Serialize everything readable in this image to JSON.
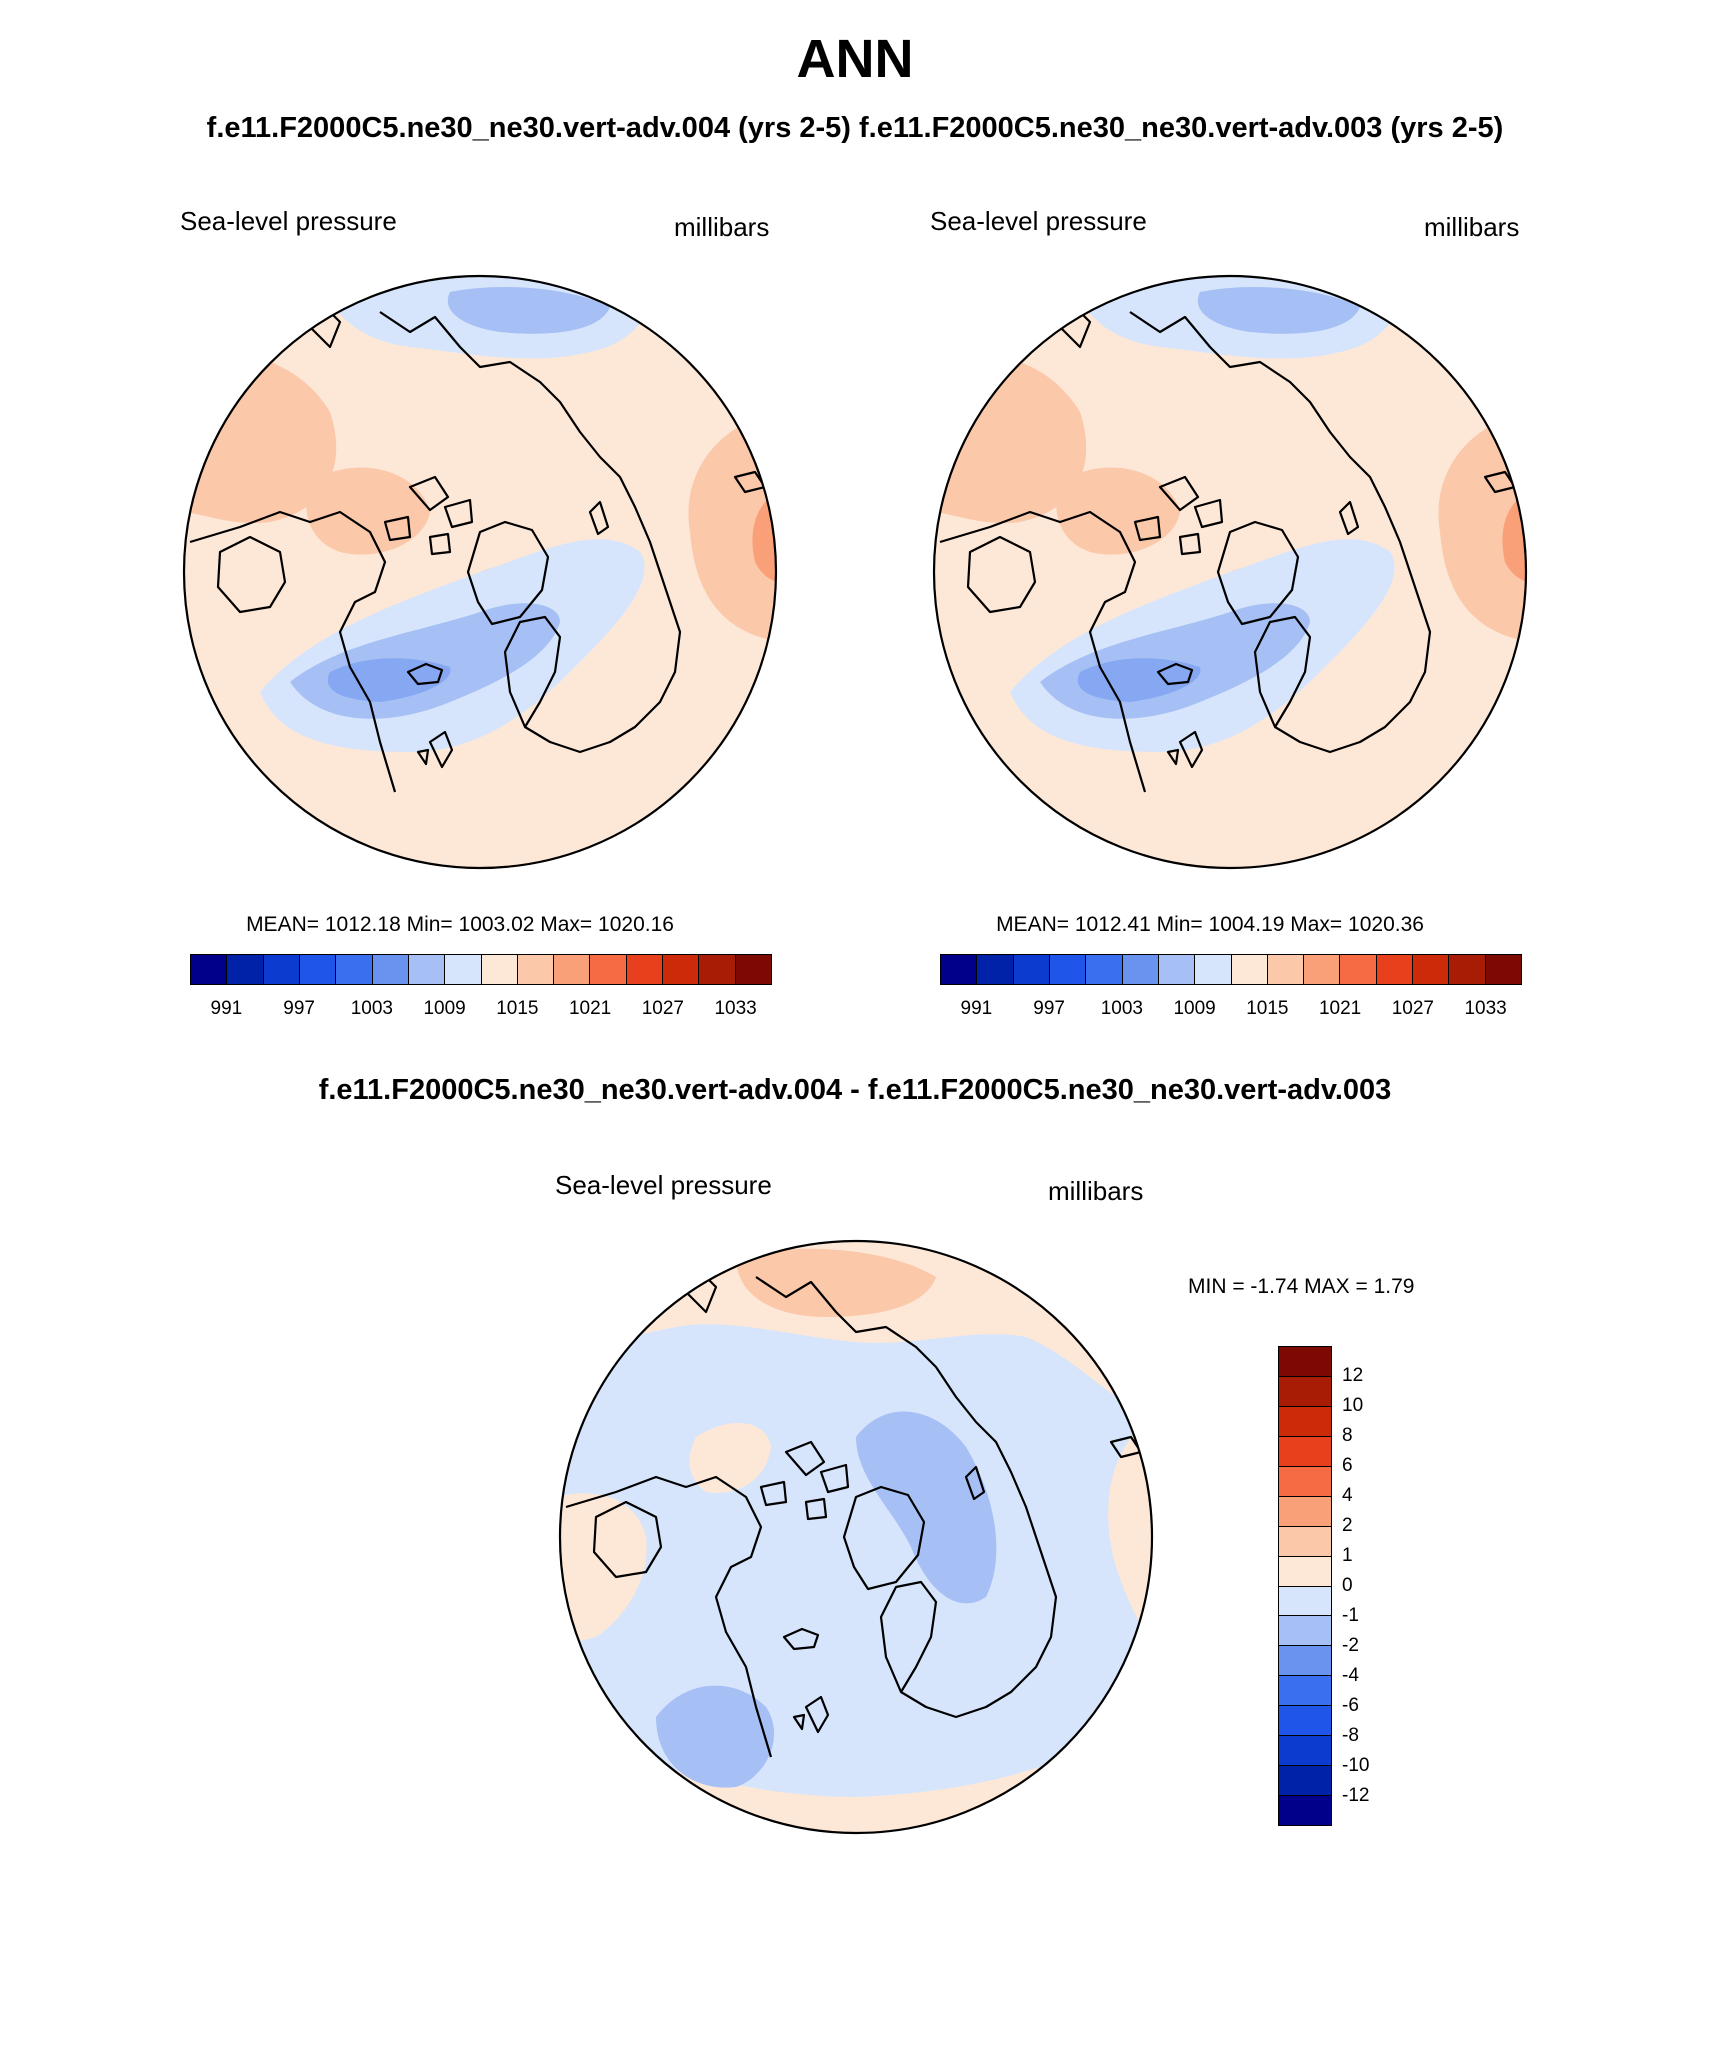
{
  "header": {
    "title": "ANN",
    "subtitle": "f.e11.F2000C5.ne30_ne30.vert-adv.004 (yrs 2-5) f.e11.F2000C5.ne30_ne30.vert-adv.003 (yrs 2-5)",
    "diff_title": "f.e11.F2000C5.ne30_ne30.vert-adv.004 - f.e11.F2000C5.ne30_ne30.vert-adv.003"
  },
  "panels": [
    {
      "variable": "Sea-level pressure",
      "units": "millibars",
      "stats": "MEAN= 1012.18  Min= 1003.02  Max= 1020.16",
      "cbar_ticks": [
        "991",
        "997",
        "1003",
        "1009",
        "1015",
        "1021",
        "1027",
        "1033"
      ]
    },
    {
      "variable": "Sea-level pressure",
      "units": "millibars",
      "stats": "MEAN= 1012.41  Min= 1004.19  Max= 1020.36",
      "cbar_ticks": [
        "991",
        "997",
        "1003",
        "1009",
        "1015",
        "1021",
        "1027",
        "1033"
      ]
    },
    {
      "variable": "Sea-level pressure",
      "units": "millibars",
      "stats": "MIN =  -1.74 MAX =   1.79",
      "cbar_ticks": [
        "12",
        "10",
        "8",
        "6",
        "4",
        "2",
        "1",
        "0",
        "-1",
        "-2",
        "-4",
        "-6",
        "-8",
        "-10",
        "-12"
      ]
    }
  ],
  "colors": {
    "abs_scale": [
      "#00008a",
      "#0022a8",
      "#0c3ccf",
      "#1f55e8",
      "#3a6ff0",
      "#6a93f0",
      "#a6c0f5",
      "#d6e5fb",
      "#fde8d8",
      "#fbc8aa",
      "#f9a078",
      "#f66b44",
      "#e8401c",
      "#cc2a08",
      "#a81c06",
      "#7c0a02"
    ],
    "diff_scale": [
      "#7c0a02",
      "#a81c06",
      "#cc2a08",
      "#e8401c",
      "#f66b44",
      "#f9a078",
      "#fbc8aa",
      "#fde8d8",
      "#d6e5fb",
      "#a6c0f5",
      "#6a93f0",
      "#3a6ff0",
      "#1f55e8",
      "#0c3ccf",
      "#0022a8",
      "#00008a"
    ],
    "ocean_low": "#d6e5fb",
    "low_mid": "#a6c0f5",
    "low_deep": "#86a8f2",
    "high_light": "#fde8d8",
    "high_mid": "#fbc8aa",
    "high_deep": "#f9a078"
  }
}
